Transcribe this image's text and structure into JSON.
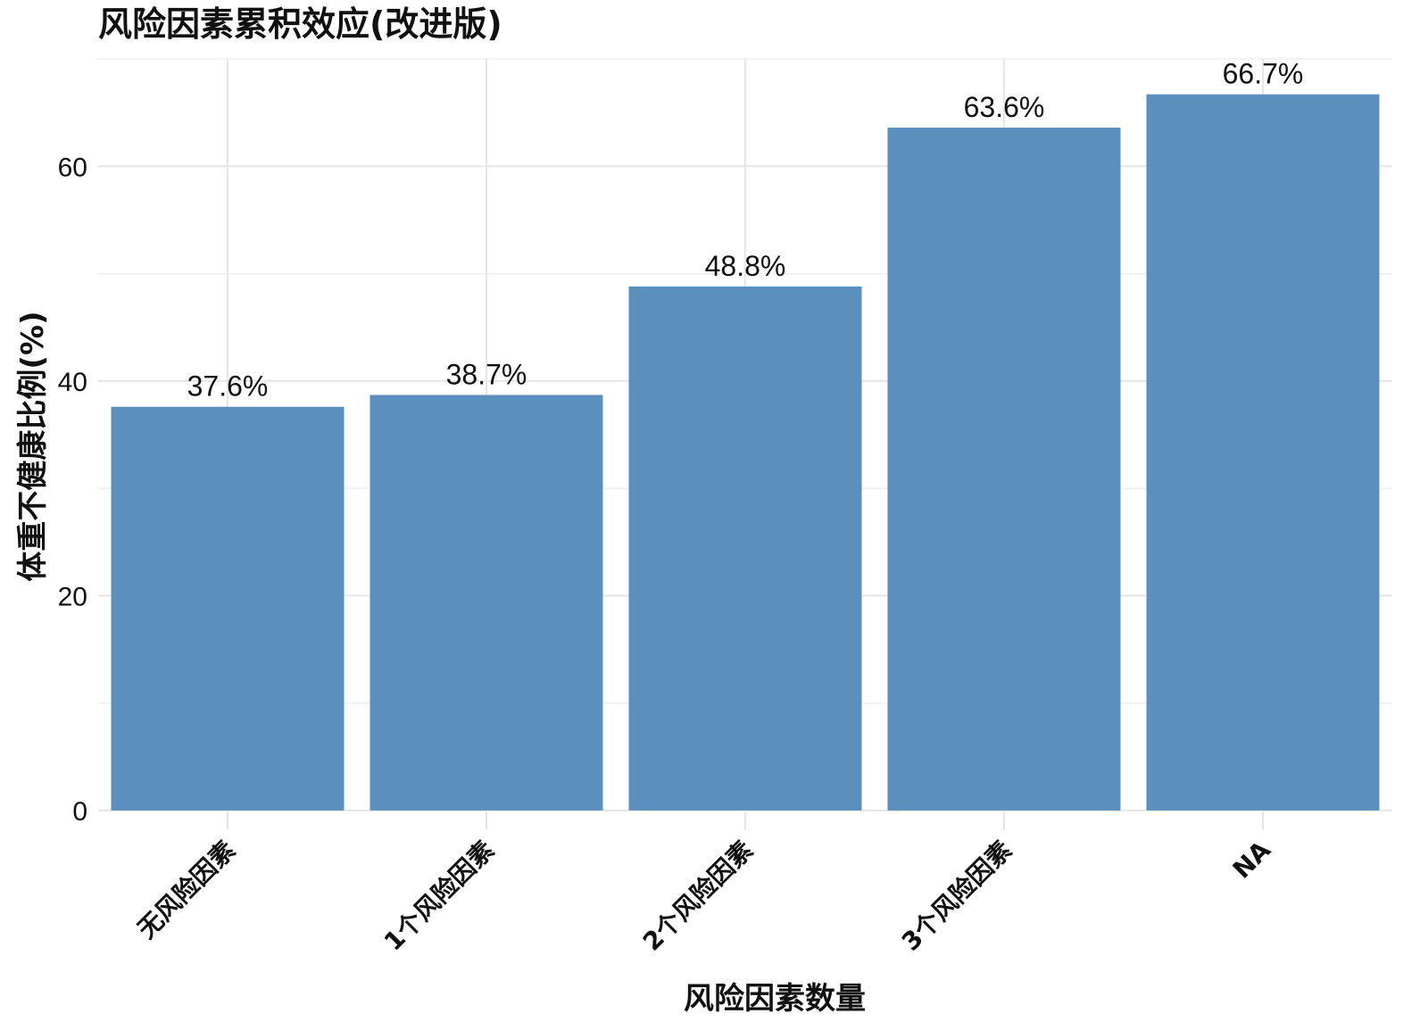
{
  "chart_data": {
    "type": "bar",
    "title": "风险因素累积效应(改进版)",
    "xlabel": "风险因素数量",
    "ylabel": "体重不健康比例(%)",
    "categories": [
      "无风险因素",
      "1个风险因素",
      "2个风险因素",
      "3个风险因素",
      "NA"
    ],
    "values": [
      37.6,
      38.7,
      48.8,
      63.6,
      66.7
    ],
    "data_labels": [
      "37.6%",
      "38.7%",
      "48.8%",
      "63.6%",
      "66.7%"
    ],
    "yticks": [
      0,
      20,
      40,
      60
    ],
    "ylim": [
      0,
      70
    ],
    "grid": true,
    "bar_color": "#5b8fbd"
  }
}
